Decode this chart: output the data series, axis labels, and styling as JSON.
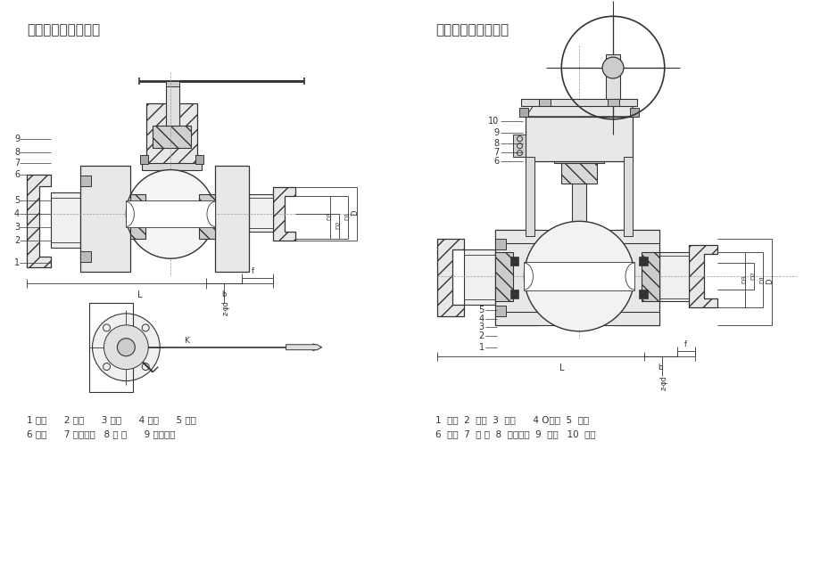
{
  "title_left": "浮动球阀构造示意图",
  "title_right": "固定球阀构造示意图",
  "legend_left_line1": "1 阀盖      2 阀体      3 垫片      4 阀座      5 球体",
  "legend_left_line2": "6 阀杆      7 平面轴承   8 填 料      9 填料压盖",
  "legend_right_line1": "1  阀体  2  阀盖  3  球体      4 O形圈  5  阀座",
  "legend_right_line2": "6  阀杆  7  填 料  8  填料压盖  9  支架   10  蜗轮"
}
